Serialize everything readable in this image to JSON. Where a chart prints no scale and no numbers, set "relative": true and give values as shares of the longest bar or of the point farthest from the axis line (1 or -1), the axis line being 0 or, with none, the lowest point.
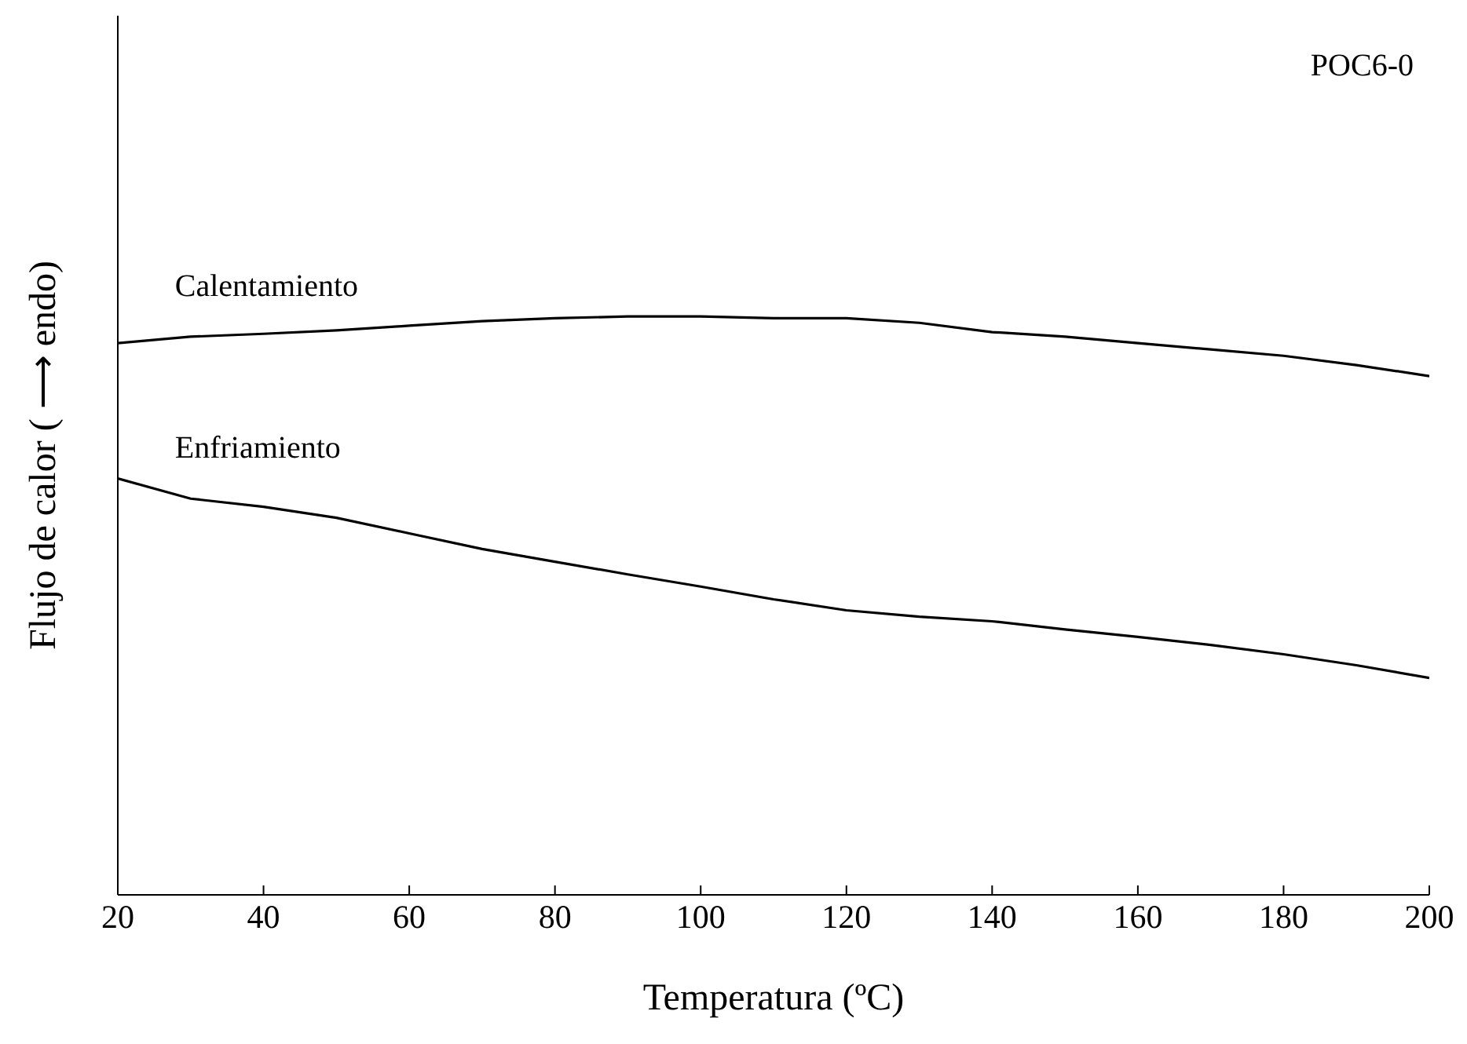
{
  "chart_data": {
    "type": "line",
    "relative": true,
    "xlabel": "Temperatura (ºC)",
    "ylabel": "Flujo de calor ( ⟶ endo)",
    "annotations": [
      "POC6-0"
    ],
    "xlim": [
      20,
      200
    ],
    "xticks": [
      20,
      40,
      60,
      80,
      100,
      120,
      140,
      160,
      180,
      200
    ],
    "grid": false,
    "legend": false,
    "marker": "none",
    "line_style": "solid",
    "x": [
      20,
      30,
      40,
      50,
      60,
      70,
      80,
      90,
      100,
      110,
      120,
      130,
      140,
      150,
      160,
      170,
      180,
      190,
      200
    ],
    "series": [
      {
        "name": "Calentamiento",
        "color": "#000000",
        "values": [
          0.954,
          0.965,
          0.97,
          0.976,
          0.984,
          0.992,
          0.997,
          1,
          1,
          0.997,
          0.997,
          0.989,
          0.973,
          0.965,
          0.954,
          0.943,
          0.932,
          0.916,
          0.897
        ]
      },
      {
        "name": "Enfriamiento",
        "color": "#000000",
        "values": [
          0.72,
          0.685,
          0.671,
          0.652,
          0.625,
          0.598,
          0.576,
          0.554,
          0.533,
          0.511,
          0.492,
          0.481,
          0.473,
          0.459,
          0.446,
          0.432,
          0.416,
          0.397,
          0.375
        ]
      }
    ]
  }
}
